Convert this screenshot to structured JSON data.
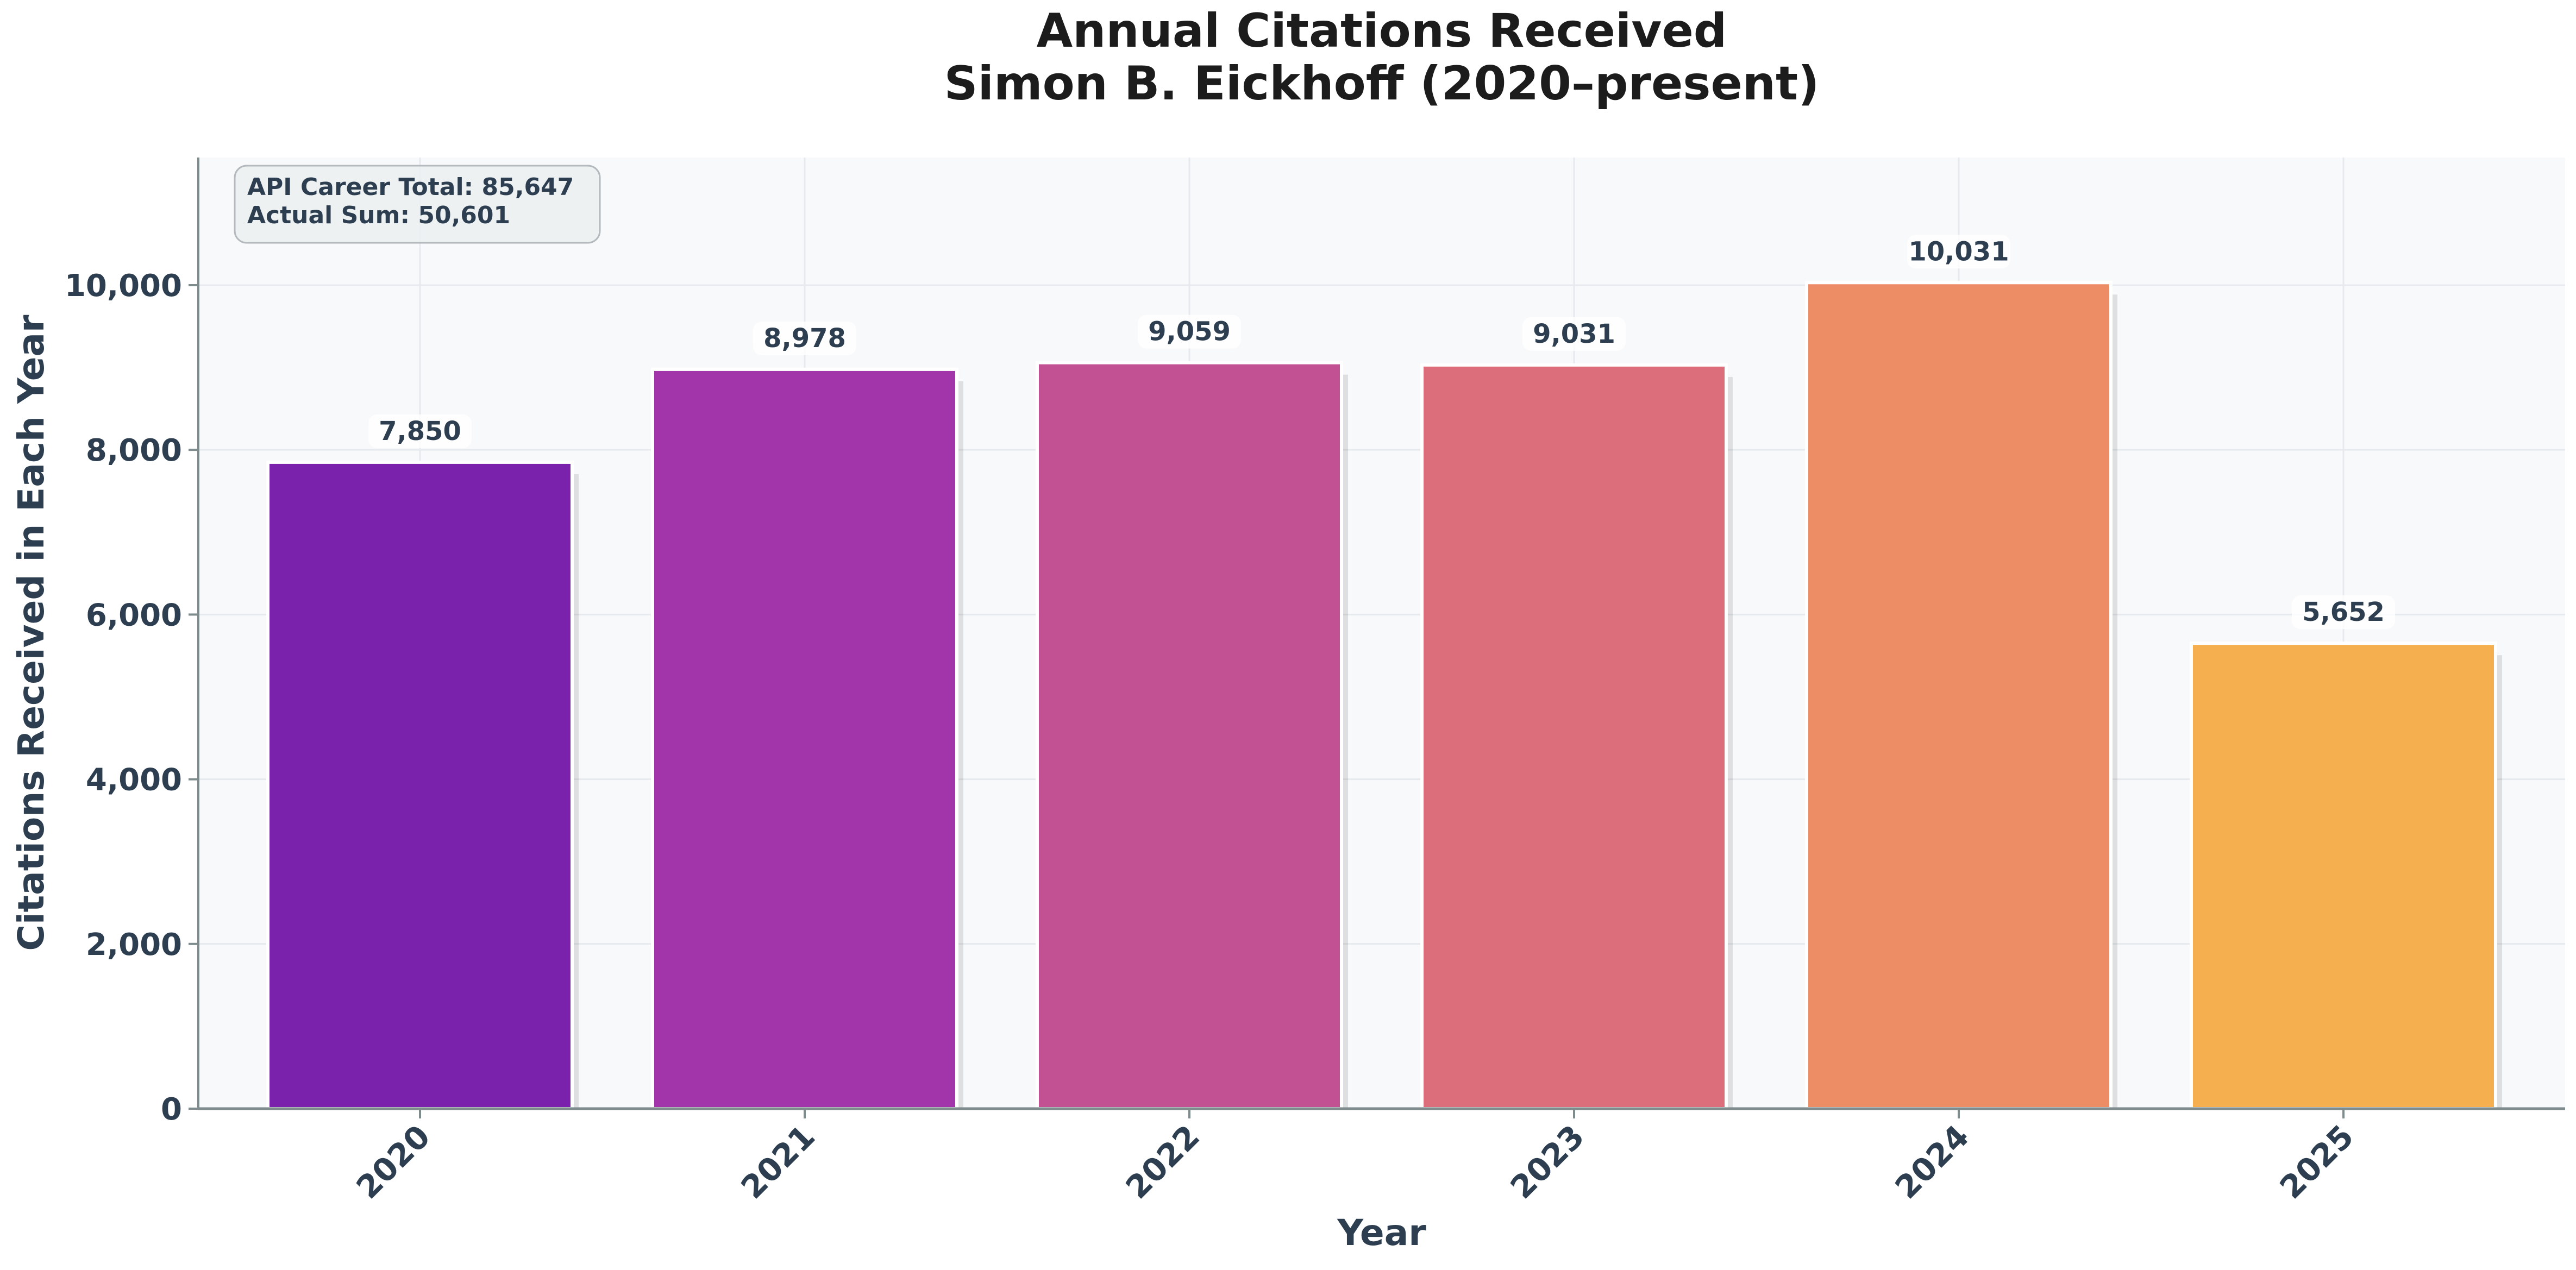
{
  "chart_data": {
    "type": "bar",
    "title_line1": "Annual Citations Received",
    "title_line2": "Simon B. Eickhoff (2020–present)",
    "xlabel": "Year",
    "ylabel": "Citations Received in Each Year",
    "categories": [
      "2020",
      "2021",
      "2022",
      "2023",
      "2024",
      "2025"
    ],
    "values": [
      7850,
      8978,
      9059,
      9031,
      10031,
      5652
    ],
    "value_labels": [
      "7,850",
      "8,978",
      "9,059",
      "9,031",
      "10,031",
      "5,652"
    ],
    "bar_colors": [
      "#7b22ad",
      "#a235aa",
      "#c25194",
      "#dc6d7a",
      "#ec8d66",
      "#f6af4f"
    ],
    "ylim": [
      0,
      11550
    ],
    "yticks": [
      0,
      2000,
      4000,
      6000,
      8000,
      10000
    ],
    "ytick_labels": [
      "0",
      "2,000",
      "4,000",
      "6,000",
      "8,000",
      "10,000"
    ],
    "grid": true,
    "annotation": {
      "line1": "API Career Total: 85,647",
      "line2": "Actual Sum: 50,601"
    },
    "colors": {
      "plot_background": "#f8f9fb",
      "text_dark": "#2c3e50",
      "title": "#1c1c1c",
      "axis": "#7f8c8d",
      "grid": "#e6e9ed",
      "annotation_fill": "#ecf0f1",
      "annotation_border": "#b4b9bd"
    }
  }
}
